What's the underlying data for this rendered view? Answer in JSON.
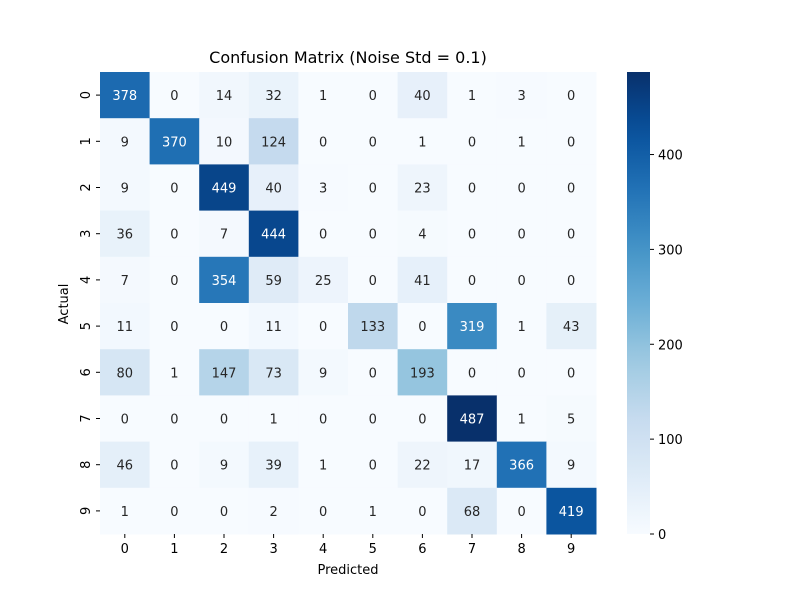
{
  "chart_data": {
    "type": "heatmap",
    "title": "Confusion Matrix (Noise Std = 0.1)",
    "xlabel": "Predicted",
    "ylabel": "Actual",
    "x_categories": [
      "0",
      "1",
      "2",
      "3",
      "4",
      "5",
      "6",
      "7",
      "8",
      "9"
    ],
    "y_categories": [
      "0",
      "1",
      "2",
      "3",
      "4",
      "5",
      "6",
      "7",
      "8",
      "9"
    ],
    "values": [
      [
        378,
        0,
        14,
        32,
        1,
        0,
        40,
        1,
        3,
        0
      ],
      [
        9,
        370,
        10,
        124,
        0,
        0,
        1,
        0,
        1,
        0
      ],
      [
        9,
        0,
        449,
        40,
        3,
        0,
        23,
        0,
        0,
        0
      ],
      [
        36,
        0,
        7,
        444,
        0,
        0,
        4,
        0,
        0,
        0
      ],
      [
        7,
        0,
        354,
        59,
        25,
        0,
        41,
        0,
        0,
        0
      ],
      [
        11,
        0,
        0,
        11,
        0,
        133,
        0,
        319,
        1,
        43
      ],
      [
        80,
        1,
        147,
        73,
        9,
        0,
        193,
        0,
        0,
        0
      ],
      [
        0,
        0,
        0,
        1,
        0,
        0,
        0,
        487,
        1,
        5
      ],
      [
        46,
        0,
        9,
        39,
        1,
        0,
        22,
        17,
        366,
        9
      ],
      [
        1,
        0,
        0,
        2,
        0,
        1,
        0,
        68,
        0,
        419
      ]
    ],
    "colormap": "Blues",
    "color_range": [
      0,
      487
    ],
    "colorbar_ticks": [
      0,
      100,
      200,
      300,
      400
    ],
    "colorbar_tick_labels": [
      "0",
      "100",
      "200",
      "300",
      "400"
    ]
  }
}
